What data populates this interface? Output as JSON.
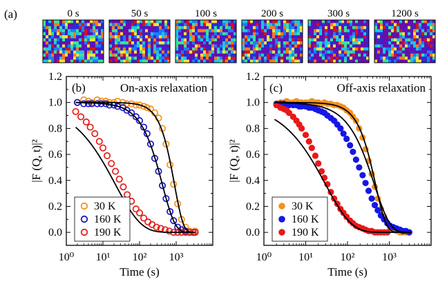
{
  "panel_a": {
    "label": "(a)",
    "frames": [
      "0 s",
      "50 s",
      "100 s",
      "200 s",
      "300 s",
      "1200 s"
    ],
    "colormap": [
      "#6a0dad",
      "#2b2bd6",
      "#1e7bff",
      "#19c6e6",
      "#3be39a",
      "#f1e53c",
      "#ff7a1a",
      "#d4141b"
    ]
  },
  "chart_data": [
    {
      "type": "scatter",
      "panel_label": "(b)",
      "title": "On-axis relaxation",
      "xlabel": "Time (s)",
      "ylabel": "|F (Q, t)|²",
      "xscale": "log",
      "xlim": [
        1,
        10000
      ],
      "ylim": [
        -0.1,
        1.2
      ],
      "xticks": [
        1,
        10,
        100,
        1000
      ],
      "xtick_labels": [
        "10⁰",
        "10¹",
        "10²",
        "10³"
      ],
      "yticks": [
        0.0,
        0.2,
        0.4,
        0.6,
        0.8,
        1.0,
        1.2
      ],
      "ytick_labels": [
        "0.0",
        "0.2",
        "0.4",
        "0.6",
        "0.8",
        "1.0",
        "1.2"
      ],
      "marker": "open-circle",
      "legend_position": "bottom-left",
      "series": [
        {
          "name": "30 K",
          "color": "#f5921e",
          "fit": {
            "tau": 900,
            "beta": 1.8
          },
          "x": [
            2,
            3,
            4,
            5,
            7,
            9,
            12,
            15,
            20,
            25,
            35,
            45,
            60,
            80,
            100,
            130,
            160,
            200,
            260,
            330,
            420,
            530,
            680,
            850,
            1100,
            1400,
            1800,
            2300,
            2900,
            3300
          ],
          "y": [
            1.0,
            1.02,
            1.01,
            1.0,
            1.02,
            1.01,
            1.01,
            1.0,
            1.0,
            1.01,
            1.0,
            0.99,
            0.99,
            0.98,
            0.98,
            0.97,
            0.96,
            0.95,
            0.92,
            0.88,
            0.8,
            0.68,
            0.52,
            0.37,
            0.22,
            0.1,
            0.04,
            0.01,
            0.0,
            0.01
          ]
        },
        {
          "name": "160 K",
          "color": "#1616cc",
          "fit": {
            "tau": 420,
            "beta": 1.25
          },
          "x": [
            2,
            3,
            4,
            5,
            7,
            9,
            12,
            15,
            20,
            25,
            35,
            45,
            60,
            80,
            100,
            130,
            160,
            200,
            260,
            330,
            420,
            530,
            680,
            850,
            1100,
            1400,
            1800,
            2300,
            2900,
            3300
          ],
          "y": [
            1.0,
            0.99,
            0.99,
            0.99,
            0.99,
            0.99,
            0.99,
            0.98,
            0.98,
            0.97,
            0.96,
            0.94,
            0.92,
            0.89,
            0.86,
            0.81,
            0.76,
            0.68,
            0.57,
            0.47,
            0.36,
            0.26,
            0.16,
            0.09,
            0.04,
            0.02,
            0.01,
            0.0,
            0.0,
            0.0
          ]
        },
        {
          "name": "190 K",
          "color": "#e0201b",
          "fit": {
            "tau": 22,
            "beta": 0.62
          },
          "x": [
            1.8,
            2.5,
            3.5,
            4.5,
            6,
            8,
            10,
            13,
            17,
            22,
            28,
            36,
            46,
            60,
            80,
            100,
            130,
            170,
            220,
            290,
            380,
            500,
            650,
            850,
            1100,
            1400,
            1800,
            2300,
            2900,
            3300
          ],
          "y": [
            0.93,
            0.89,
            0.85,
            0.81,
            0.76,
            0.7,
            0.65,
            0.59,
            0.53,
            0.47,
            0.41,
            0.35,
            0.29,
            0.24,
            0.18,
            0.15,
            0.11,
            0.08,
            0.06,
            0.04,
            0.03,
            0.02,
            0.01,
            0.0,
            0.0,
            0.0,
            0.0,
            0.0,
            0.0,
            0.0
          ]
        }
      ]
    },
    {
      "type": "scatter",
      "panel_label": "(c)",
      "title": "Off-axis relaxation",
      "xlabel": "Time (s)",
      "ylabel": "|F (Q, t)|²",
      "xscale": "log",
      "xlim": [
        1,
        10000
      ],
      "ylim": [
        -0.1,
        1.2
      ],
      "xticks": [
        1,
        10,
        100,
        1000
      ],
      "xtick_labels": [
        "10⁰",
        "10¹",
        "10²",
        "10³"
      ],
      "yticks": [
        0.0,
        0.2,
        0.4,
        0.6,
        0.8,
        1.0,
        1.2
      ],
      "ytick_labels": [
        "0.0",
        "0.2",
        "0.4",
        "0.6",
        "0.8",
        "1.0",
        "1.2"
      ],
      "marker": "filled-circle",
      "legend_position": "bottom-left",
      "series": [
        {
          "name": "30 K",
          "color": "#f5921e",
          "fit": {
            "tau": 470,
            "beta": 1.7
          },
          "x": [
            2,
            2.5,
            3,
            3.5,
            4,
            5,
            6,
            7,
            8,
            10,
            12,
            14,
            17,
            20,
            24,
            28,
            33,
            40,
            48,
            57,
            68,
            80,
            95,
            115,
            135,
            160,
            190,
            230,
            270,
            320,
            380,
            450,
            530,
            630,
            750,
            900,
            1050,
            1250,
            1500,
            1800,
            2100,
            2500,
            3000
          ],
          "y": [
            0.99,
            1.0,
            1.0,
            1.01,
            1.0,
            1.0,
            1.01,
            1.0,
            1.0,
            1.0,
            1.0,
            1.01,
            1.0,
            1.0,
            0.99,
            1.0,
            0.99,
            0.99,
            0.98,
            0.98,
            0.97,
            0.96,
            0.94,
            0.92,
            0.89,
            0.86,
            0.8,
            0.73,
            0.64,
            0.55,
            0.45,
            0.35,
            0.26,
            0.18,
            0.12,
            0.07,
            0.04,
            0.02,
            0.01,
            0.0,
            0.0,
            0.0,
            0.0
          ]
        },
        {
          "name": "160 K",
          "color": "#1616e6",
          "fit": {
            "tau": 440,
            "beta": 1.15
          },
          "x": [
            2,
            2.5,
            3,
            3.5,
            4,
            5,
            6,
            7,
            8,
            10,
            12,
            14,
            17,
            20,
            24,
            28,
            33,
            40,
            48,
            57,
            68,
            80,
            95,
            115,
            135,
            160,
            190,
            230,
            270,
            320,
            380,
            450,
            530,
            630,
            750,
            900,
            1050,
            1250,
            1500,
            1800,
            2100,
            2500,
            3000
          ],
          "y": [
            0.99,
            0.99,
            0.99,
            0.98,
            0.98,
            0.98,
            0.98,
            0.97,
            0.97,
            0.97,
            0.96,
            0.96,
            0.95,
            0.94,
            0.93,
            0.92,
            0.9,
            0.88,
            0.86,
            0.83,
            0.8,
            0.76,
            0.72,
            0.67,
            0.62,
            0.56,
            0.5,
            0.44,
            0.38,
            0.32,
            0.26,
            0.21,
            0.17,
            0.13,
            0.1,
            0.07,
            0.05,
            0.04,
            0.03,
            0.02,
            0.01,
            0.01,
            0.0
          ]
        },
        {
          "name": "190 K",
          "color": "#e81919",
          "fit": {
            "tau": 30,
            "beta": 0.7
          },
          "x": [
            2,
            2.5,
            3,
            3.5,
            4,
            5,
            6,
            7,
            8,
            10,
            12,
            14,
            17,
            20,
            24,
            28,
            33,
            40,
            48,
            57,
            68,
            80,
            95,
            115,
            135,
            160,
            190,
            230,
            270,
            320,
            380,
            450,
            530,
            630,
            750,
            900
          ],
          "y": [
            0.98,
            0.96,
            0.95,
            0.94,
            0.92,
            0.89,
            0.86,
            0.83,
            0.8,
            0.75,
            0.7,
            0.65,
            0.59,
            0.53,
            0.47,
            0.42,
            0.37,
            0.31,
            0.26,
            0.22,
            0.18,
            0.15,
            0.12,
            0.09,
            0.07,
            0.05,
            0.04,
            0.03,
            0.02,
            0.01,
            0.01,
            0.0,
            0.0,
            0.0,
            0.0,
            0.0
          ]
        }
      ]
    }
  ]
}
